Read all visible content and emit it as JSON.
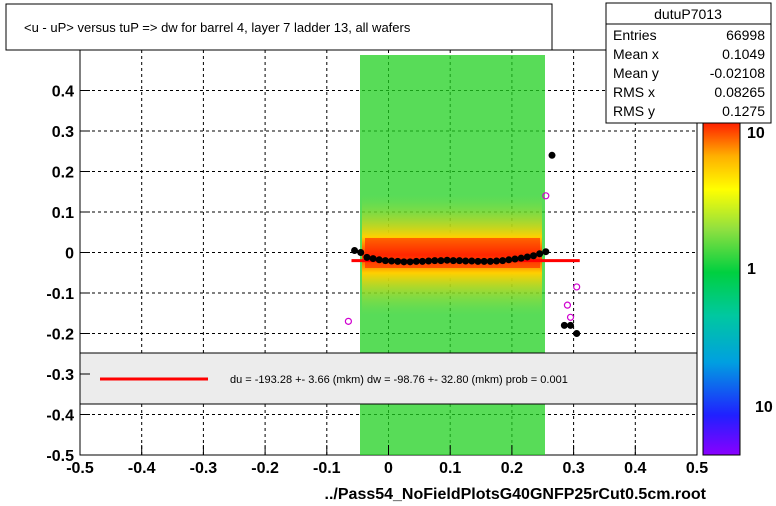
{
  "title": "<u - uP>       versus  tuP =>  dw for barrel 4, layer 7 ladder 13, all wafers",
  "footer": "../Pass54_NoFieldPlotsG40GNFP25rCut0.5cm.root",
  "stats": {
    "name": "dutuP7013",
    "rows": [
      {
        "label": "Entries",
        "value": "66998"
      },
      {
        "label": "Mean x",
        "value": "0.1049"
      },
      {
        "label": "Mean y",
        "value": "-0.02108"
      },
      {
        "label": "RMS x",
        "value": "0.08265"
      },
      {
        "label": "RMS y",
        "value": "0.1275"
      }
    ]
  },
  "fit_legend": "du = -193.28 +-  3.66 (mkm) dw =  -98.76 +- 32.80 (mkm) prob = 0.001",
  "colorbar": {
    "labels": [
      "10",
      "1",
      "10"
    ]
  },
  "chart_data": {
    "type": "scatter",
    "x_ticks": [
      "-0.5",
      "-0.4",
      "-0.3",
      "-0.2",
      "-0.1",
      "0",
      "0.1",
      "0.2",
      "0.3",
      "0.4",
      "0.5"
    ],
    "y_ticks": [
      "-0.5",
      "-0.4",
      "-0.3",
      "-0.2",
      "-0.1",
      "0",
      "0.1",
      "0.2",
      "0.3",
      "0.4"
    ],
    "xlim": [
      -0.5,
      0.5
    ],
    "ylim": [
      -0.5,
      0.5
    ],
    "grid": true,
    "black_points": [
      {
        "x": -0.055,
        "y": 0.005
      },
      {
        "x": -0.045,
        "y": 0.0
      },
      {
        "x": -0.035,
        "y": -0.012
      },
      {
        "x": -0.025,
        "y": -0.015
      },
      {
        "x": -0.015,
        "y": -0.018
      },
      {
        "x": -0.005,
        "y": -0.02
      },
      {
        "x": 0.005,
        "y": -0.021
      },
      {
        "x": 0.015,
        "y": -0.022
      },
      {
        "x": 0.025,
        "y": -0.023
      },
      {
        "x": 0.035,
        "y": -0.023
      },
      {
        "x": 0.045,
        "y": -0.022
      },
      {
        "x": 0.055,
        "y": -0.022
      },
      {
        "x": 0.065,
        "y": -0.021
      },
      {
        "x": 0.075,
        "y": -0.02
      },
      {
        "x": 0.085,
        "y": -0.02
      },
      {
        "x": 0.095,
        "y": -0.019
      },
      {
        "x": 0.105,
        "y": -0.02
      },
      {
        "x": 0.115,
        "y": -0.02
      },
      {
        "x": 0.125,
        "y": -0.021
      },
      {
        "x": 0.135,
        "y": -0.021
      },
      {
        "x": 0.145,
        "y": -0.022
      },
      {
        "x": 0.155,
        "y": -0.022
      },
      {
        "x": 0.165,
        "y": -0.022
      },
      {
        "x": 0.175,
        "y": -0.021
      },
      {
        "x": 0.185,
        "y": -0.02
      },
      {
        "x": 0.195,
        "y": -0.018
      },
      {
        "x": 0.205,
        "y": -0.016
      },
      {
        "x": 0.215,
        "y": -0.014
      },
      {
        "x": 0.225,
        "y": -0.011
      },
      {
        "x": 0.235,
        "y": -0.008
      },
      {
        "x": 0.245,
        "y": -0.003
      },
      {
        "x": 0.255,
        "y": 0.002
      },
      {
        "x": 0.265,
        "y": 0.24
      },
      {
        "x": 0.285,
        "y": -0.18
      },
      {
        "x": 0.295,
        "y": -0.18
      },
      {
        "x": 0.305,
        "y": -0.2
      }
    ],
    "magenta_points": [
      {
        "x": -0.065,
        "y": -0.17
      },
      {
        "x": 0.255,
        "y": 0.14
      },
      {
        "x": 0.29,
        "y": -0.13
      },
      {
        "x": 0.295,
        "y": -0.16
      },
      {
        "x": 0.305,
        "y": -0.085
      }
    ],
    "fit_line": {
      "x": [
        -0.06,
        0.31
      ],
      "y": [
        -0.02,
        -0.02
      ]
    }
  }
}
